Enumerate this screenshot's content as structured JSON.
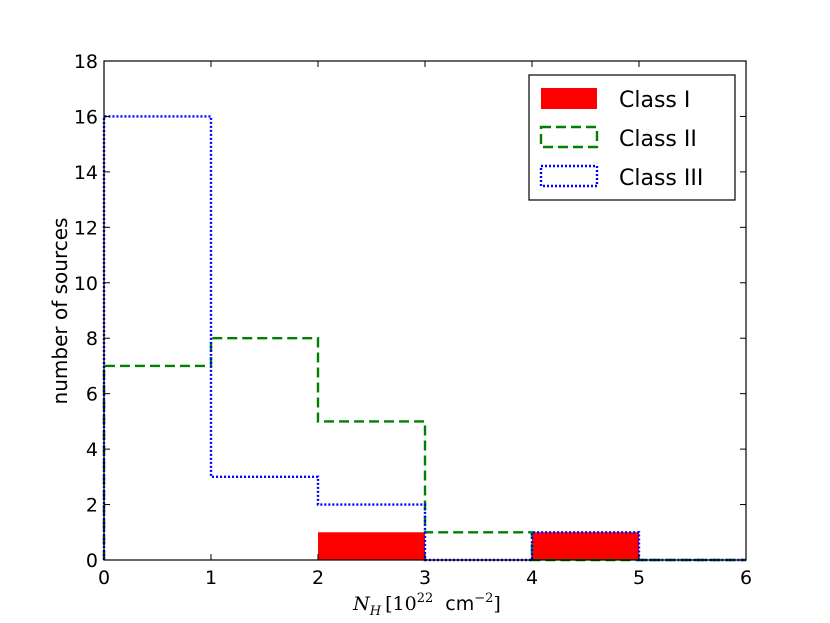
{
  "chart_data": {
    "type": "histogram",
    "xlabel": {
      "main": "N",
      "sub": "H",
      "bracket_open": "[10",
      "exp": "22",
      "unit": "cm",
      "unit_exp": "−2",
      "bracket_close": "]"
    },
    "ylabel": "number of sources",
    "xlim": [
      0,
      6
    ],
    "ylim": [
      0,
      18
    ],
    "x_ticks": [
      "0",
      "1",
      "2",
      "3",
      "4",
      "5",
      "6"
    ],
    "y_ticks": [
      "0",
      "2",
      "4",
      "6",
      "8",
      "10",
      "12",
      "14",
      "16",
      "18"
    ],
    "bin_edges": [
      0,
      1,
      2,
      3,
      4,
      5,
      6
    ],
    "legend_position": "top-right",
    "series": [
      {
        "name": "Class I",
        "style": "filled",
        "color": "#ff0000",
        "counts": [
          0,
          0,
          1,
          0,
          1,
          0
        ]
      },
      {
        "name": "Class II",
        "style": "dashed",
        "color": "#008000",
        "counts": [
          7,
          8,
          5,
          1,
          0,
          0
        ]
      },
      {
        "name": "Class III",
        "style": "dotted",
        "color": "#0000ff",
        "counts": [
          16,
          3,
          2,
          0,
          1,
          0
        ]
      }
    ]
  }
}
